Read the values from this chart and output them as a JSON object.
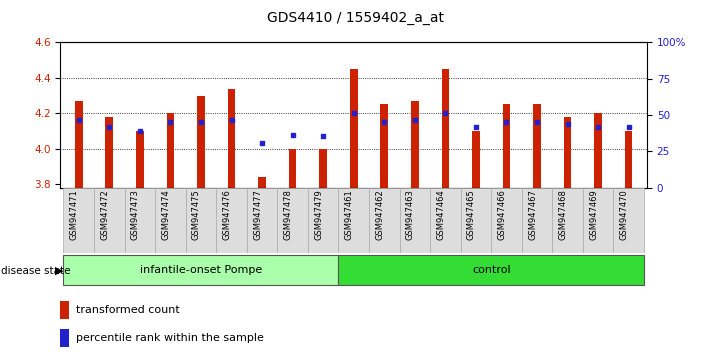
{
  "title": "GDS4410 / 1559402_a_at",
  "samples": [
    "GSM947471",
    "GSM947472",
    "GSM947473",
    "GSM947474",
    "GSM947475",
    "GSM947476",
    "GSM947477",
    "GSM947478",
    "GSM947479",
    "GSM947461",
    "GSM947462",
    "GSM947463",
    "GSM947464",
    "GSM947465",
    "GSM947466",
    "GSM947467",
    "GSM947468",
    "GSM947469",
    "GSM947470"
  ],
  "red_values": [
    4.27,
    4.18,
    4.1,
    4.2,
    4.3,
    4.34,
    3.84,
    4.0,
    4.0,
    4.45,
    4.25,
    4.27,
    4.45,
    4.1,
    4.25,
    4.25,
    4.18,
    4.2,
    4.1
  ],
  "blue_values": [
    4.16,
    4.12,
    4.1,
    4.15,
    4.15,
    4.16,
    4.03,
    4.08,
    4.07,
    4.2,
    4.15,
    4.16,
    4.2,
    4.12,
    4.15,
    4.15,
    4.14,
    4.12,
    4.12
  ],
  "ymin": 3.78,
  "ymax": 4.6,
  "y_ticks_left": [
    3.8,
    4.0,
    4.2,
    4.4,
    4.6
  ],
  "y_ticks_right": [
    0,
    25,
    50,
    75,
    100
  ],
  "legend_items": [
    "transformed count",
    "percentile rank within the sample"
  ],
  "bar_color": "#cc2200",
  "dot_color": "#2222cc",
  "bar_width": 0.25,
  "group_info": [
    {
      "label": "infantile-onset Pompe",
      "start": 0,
      "end": 8,
      "color": "#aaffaa"
    },
    {
      "label": "control",
      "start": 9,
      "end": 18,
      "color": "#33dd33"
    }
  ]
}
